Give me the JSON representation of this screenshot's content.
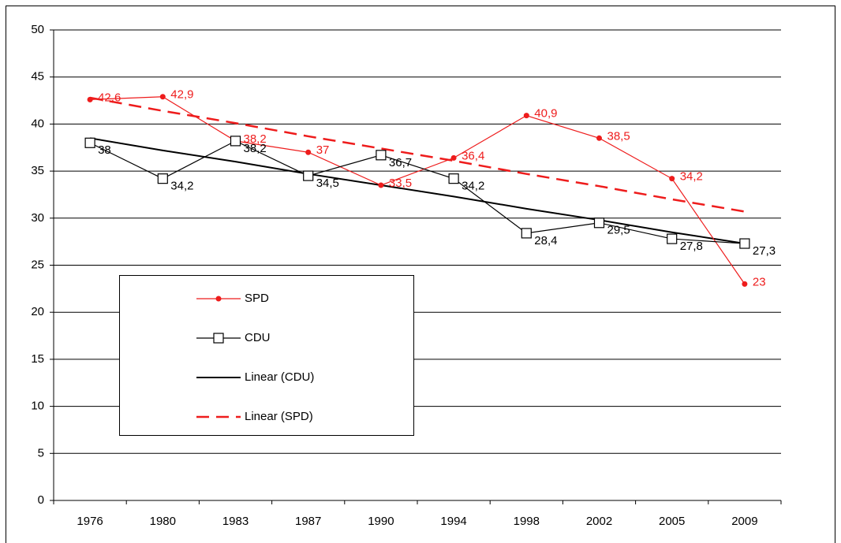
{
  "chart_data": {
    "type": "line",
    "categories": [
      "1976",
      "1980",
      "1983",
      "1987",
      "1990",
      "1994",
      "1998",
      "2002",
      "2005",
      "2009"
    ],
    "series": [
      {
        "name": "SPD",
        "color": "#ee1c1c",
        "marker": "circle",
        "dashed": false,
        "labels": true,
        "values": [
          42.6,
          42.9,
          38.2,
          37,
          33.5,
          36.4,
          40.9,
          38.5,
          34.2,
          23
        ],
        "value_labels": [
          "42,6",
          "42,9",
          "38,2",
          "37",
          "33,5",
          "36,4",
          "40,9",
          "38,5",
          "34,2",
          "23"
        ]
      },
      {
        "name": "CDU",
        "color": "#000000",
        "marker": "square",
        "dashed": false,
        "labels": true,
        "values": [
          38,
          34.2,
          38.2,
          34.5,
          36.7,
          34.2,
          28.4,
          29.5,
          27.8,
          27.3
        ],
        "value_labels": [
          "38",
          "34,2",
          "38,2",
          "34,5",
          "36,7",
          "34,2",
          "28,4",
          "29,5",
          "27,8",
          "27,3"
        ]
      },
      {
        "name": "Linear (CDU)",
        "color": "#000000",
        "marker": "none",
        "dashed": false,
        "labels": false,
        "width": 2,
        "values": [
          38.5,
          37.2,
          36.0,
          34.7,
          33.5,
          32.3,
          31.0,
          29.8,
          28.5,
          27.3
        ]
      },
      {
        "name": "Linear (SPD)",
        "color": "#ee1c1c",
        "marker": "none",
        "dashed": true,
        "labels": false,
        "width": 2.5,
        "values": [
          42.8,
          41.4,
          40.1,
          38.7,
          37.4,
          36.1,
          34.7,
          33.4,
          32.0,
          30.7
        ]
      }
    ],
    "ylim": [
      0,
      50
    ],
    "yticks": [
      0,
      5,
      10,
      15,
      20,
      25,
      30,
      35,
      40,
      45,
      50
    ],
    "grid": true,
    "legend": "lower left"
  }
}
